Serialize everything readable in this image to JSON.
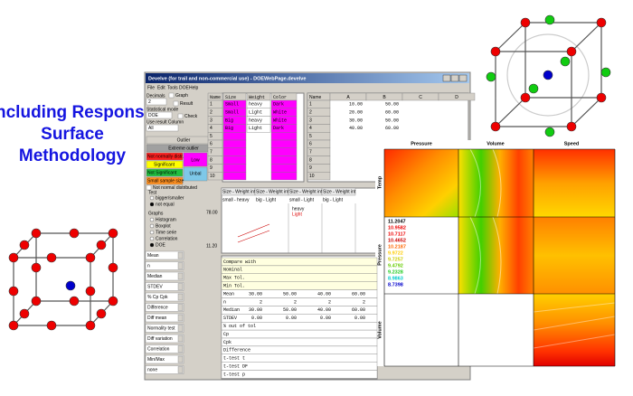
{
  "heading": "Including Response Surface Methodology",
  "window": {
    "title": "Develve (for trail and non-commercial use) - DOEWebPage.develve",
    "menu": [
      "File",
      "Edit",
      "Tools",
      "DOE",
      "Help"
    ]
  },
  "controls": {
    "decimals_label": "Decimals",
    "decimals": "2",
    "graph": "Graph",
    "result": "Result",
    "stat_mode_label": "Statistical mode",
    "stat_mode": "DOE",
    "check": "Check",
    "use_result_label": "Use result Column",
    "use_result": "All",
    "outlier": "Outlier",
    "extreme_outlier": "Extreme outlier",
    "not_normal": "Not normally distr.",
    "low": "Low",
    "significant": "Significant",
    "not_significant": "Not Significant",
    "unbal": "Unbal",
    "small_sample": "Small sample size",
    "not_normal_check": "Not normal distributed",
    "test_label": "Test",
    "test_options": [
      "bigger/smaller",
      "not equal"
    ],
    "graphs_label": "Graphs",
    "graphs": [
      "Histogram",
      "Boxplot",
      "Time serie",
      "Correlation",
      "DOE"
    ]
  },
  "factor_table": {
    "header": [
      "Name",
      "Size",
      "Weight",
      "Color"
    ],
    "row_numbers": [
      "1",
      "2",
      "3",
      "4",
      "5",
      "6",
      "7",
      "8",
      "9",
      "10"
    ],
    "rows": [
      [
        "Small",
        "heavy",
        "Dark"
      ],
      [
        "Small",
        "Light",
        "White"
      ],
      [
        "Big",
        "heavy",
        "White"
      ],
      [
        "Big",
        "Light",
        "Dark"
      ]
    ]
  },
  "result_table": {
    "header": [
      "Name",
      "A",
      "B",
      "C",
      "D"
    ],
    "row_numbers": [
      "1",
      "2",
      "3",
      "4",
      "5",
      "6",
      "7",
      "8",
      "9",
      "10"
    ],
    "rows": [
      [
        "10.00",
        "50.00"
      ],
      [
        "20.00",
        "60.00"
      ],
      [
        "30.00",
        "50.00"
      ],
      [
        "40.00",
        "60.00"
      ]
    ]
  },
  "interaction": {
    "headers": [
      "Size - Weight int",
      "Size - Weight int",
      "Size - Weight int",
      "Size - Weight int"
    ],
    "subheaders": [
      "small - heavy",
      "big - Light",
      "small - Light",
      "big - Light"
    ],
    "legend": [
      "heavy",
      "Light"
    ],
    "y_top": "78.00",
    "y_bottom": "11.20"
  },
  "dropdowns": [
    "Mean",
    "n",
    "Median",
    "STDEV",
    "% Cp Cpk",
    "Difference",
    "Diff mean",
    "Normality test",
    "Diff variation",
    "Correlation",
    "Min/Max",
    "none"
  ],
  "stats": [
    {
      "label": "Compare with"
    },
    {
      "label": "Nominal"
    },
    {
      "label": "Max Tol."
    },
    {
      "label": "Min Tol."
    },
    {
      "label": "Mean",
      "values": [
        "30.00",
        "50.00",
        "40.00",
        "60.00"
      ]
    },
    {
      "label": "n",
      "values": [
        "2",
        "2",
        "2",
        "2"
      ]
    },
    {
      "label": "Median",
      "values": [
        "30.00",
        "50.00",
        "40.00",
        "60.00"
      ]
    },
    {
      "label": "STDEV",
      "values": [
        "0.00",
        "0.00",
        "0.00",
        "0.00"
      ]
    },
    {
      "label": "% out of tol"
    },
    {
      "label": "Cp"
    },
    {
      "label": "Cpk"
    },
    {
      "label": "Difference"
    },
    {
      "label": "t-test t"
    },
    {
      "label": "t-test DF"
    },
    {
      "label": "t-test p"
    }
  ],
  "contour": {
    "columns": [
      "Pressure",
      "Volume",
      "Speed"
    ],
    "rows": [
      "Temp",
      "Pressure",
      "Volume"
    ],
    "legend": [
      "11.2047",
      "10.9582",
      "10.7117",
      "10.4652",
      "10.2187",
      "9.9722",
      "9.7257",
      "9.4792",
      "9.2328",
      "8.9863",
      "8.7398"
    ]
  }
}
